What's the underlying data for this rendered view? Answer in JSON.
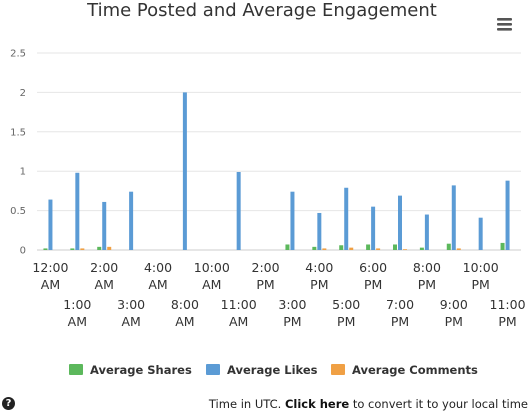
{
  "chart_data": {
    "type": "bar",
    "title": "Time Posted and Average Engagement",
    "categories": [
      "12:00 AM",
      "1:00 AM",
      "2:00 AM",
      "3:00 AM",
      "4:00 AM",
      "8:00 AM",
      "10:00 AM",
      "11:00 AM",
      "2:00 PM",
      "3:00 PM",
      "4:00 PM",
      "5:00 PM",
      "6:00 PM",
      "7:00 PM",
      "8:00 PM",
      "9:00 PM",
      "10:00 PM",
      "11:00 PM"
    ],
    "series": [
      {
        "name": "Average Shares",
        "color": "#5cb85c",
        "values": [
          0.02,
          0.02,
          0.04,
          0,
          0,
          0,
          0,
          0,
          0,
          0.07,
          0.04,
          0.06,
          0.07,
          0.07,
          0.03,
          0.08,
          0,
          0.09
        ]
      },
      {
        "name": "Average Likes",
        "color": "#5b9bd5",
        "values": [
          0.64,
          0.98,
          0.61,
          0.74,
          0,
          2.0,
          0,
          0.99,
          0,
          0.74,
          0.47,
          0.79,
          0.55,
          0.69,
          0.45,
          0.82,
          0.41,
          0.88
        ]
      },
      {
        "name": "Average Comments",
        "color": "#f0a044",
        "values": [
          0,
          0.02,
          0.04,
          0,
          0,
          0,
          0,
          0,
          0,
          0,
          0.02,
          0.03,
          0.02,
          0.01,
          0,
          0.02,
          0,
          0
        ]
      }
    ],
    "y_ticks": [
      "0",
      "0.5",
      "1",
      "1.5",
      "2",
      "2.5"
    ],
    "ylim": [
      0,
      2.5
    ],
    "xlabel": "",
    "ylabel": "",
    "legend_position": "bottom",
    "grid": true
  },
  "menu": {
    "icon": "hamburger-menu-icon"
  },
  "footer": {
    "help_icon": "?",
    "prefix": "Time in UTC. ",
    "link_text": "Click here",
    "suffix": " to convert it to your local time"
  }
}
